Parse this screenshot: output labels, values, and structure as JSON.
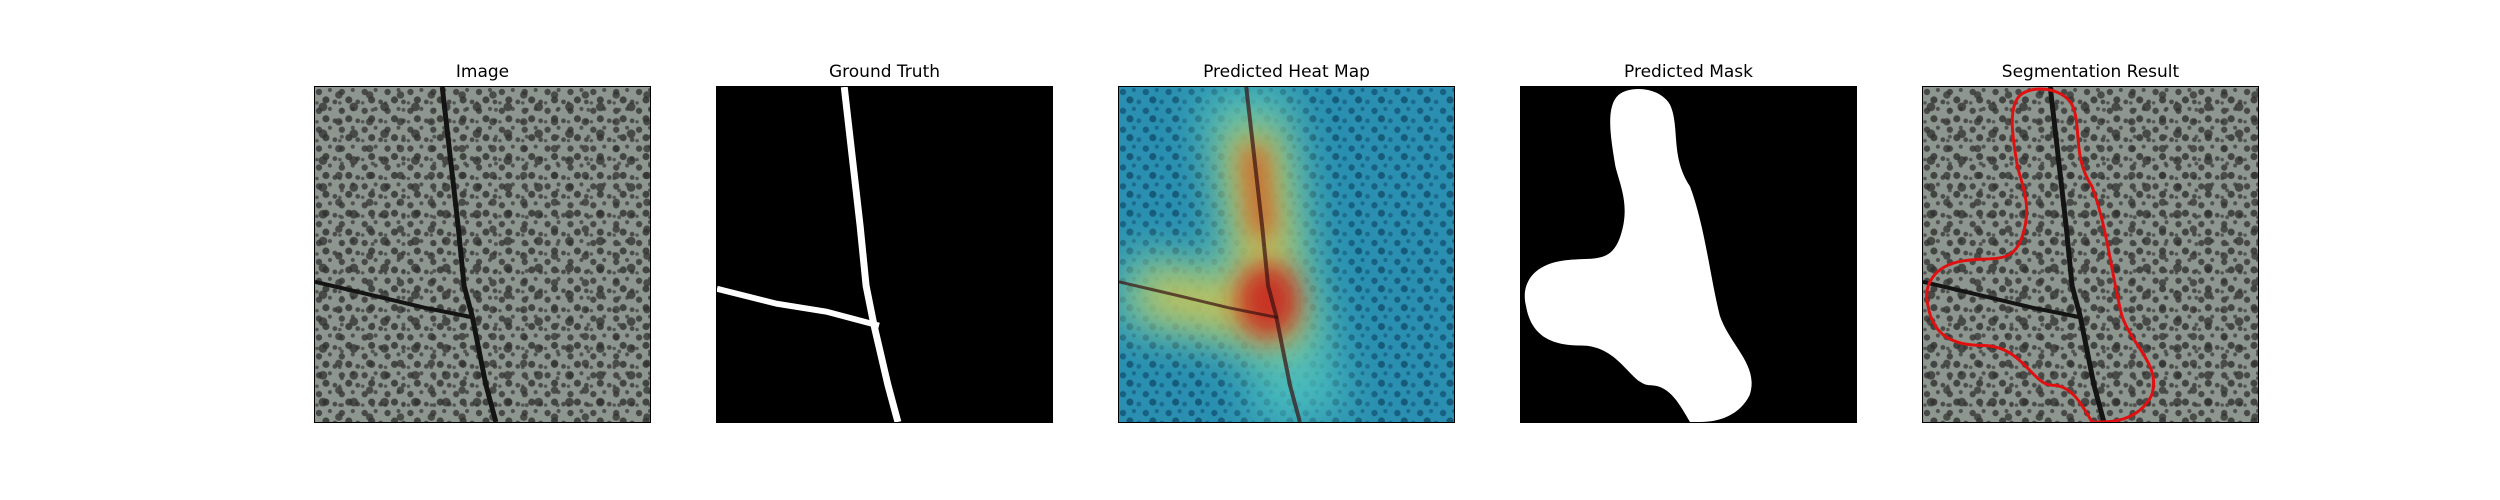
{
  "panels": [
    {
      "title": "Image"
    },
    {
      "title": "Ground Truth"
    },
    {
      "title": "Predicted Heat Map"
    },
    {
      "title": "Predicted Mask"
    },
    {
      "title": "Segmentation Result"
    }
  ],
  "colors": {
    "surface": "#8e978f",
    "speckle": "#3a3a3a",
    "crack": "#141414",
    "mask_foreground": "#ffffff",
    "mask_background": "#000000",
    "contour": "#e01010",
    "heat_low": "#1f7fa8",
    "heat_mid": "#4fc4bf",
    "heat_high": "#c81e1e",
    "heat_warm": "#e6c23a"
  }
}
